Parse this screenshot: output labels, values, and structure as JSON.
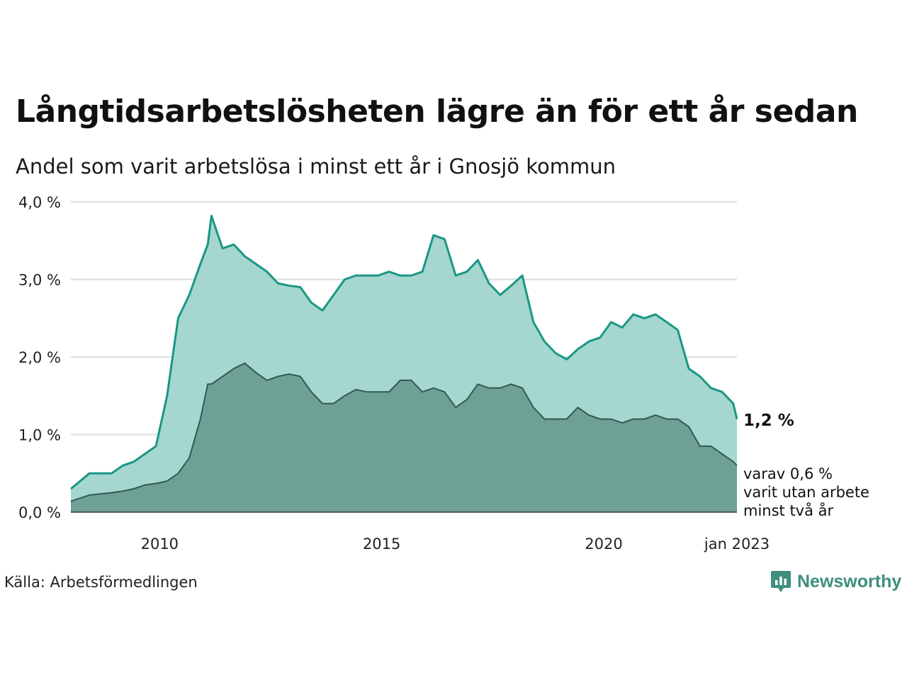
{
  "title": "Långtidsarbetslösheten lägre än för ett år sedan",
  "subtitle": "Andel som varit arbetslösa i minst ett år i Gnosjö kommun",
  "source": "Källa: Arbetsförmedlingen",
  "brand": {
    "name": "Newsworthy",
    "logo_icon": "newsworthy-logo-icon"
  },
  "colors": {
    "series1_line": "#1a9784",
    "series1_fill": "#a5d6d0",
    "series2_line": "#2e5b50",
    "series2_fill": "#6fa096",
    "grid": "#dcdcdc",
    "brand": "#3f8f7f"
  },
  "chart_data": {
    "type": "area",
    "ylim": [
      0,
      4
    ],
    "y_ticks": [
      "0,0 %",
      "1,0 %",
      "2,0 %",
      "3,0 %",
      "4,0 %"
    ],
    "x_ticks": [
      "2010",
      "2015",
      "2020",
      "jan 2023"
    ],
    "grid": true,
    "annotations": {
      "last_value": "1,2 %",
      "sub_label": [
        "varav 0,6 %",
        "varit utan arbete",
        "minst två år"
      ]
    },
    "series": [
      {
        "name": "",
        "x": [
          "2008-01",
          "2008-06",
          "2008-12",
          "2009-03",
          "2009-06",
          "2009-09",
          "2009-12",
          "2010-03",
          "2010-06",
          "2010-09",
          "2010-12",
          "2011-02",
          "2011-03",
          "2011-06",
          "2011-09",
          "2011-12",
          "2012-03",
          "2012-06",
          "2012-09",
          "2012-12",
          "2013-03",
          "2013-06",
          "2013-09",
          "2013-12",
          "2014-03",
          "2014-06",
          "2014-09",
          "2014-12",
          "2015-03",
          "2015-06",
          "2015-09",
          "2015-12",
          "2016-03",
          "2016-06",
          "2016-09",
          "2016-12",
          "2017-03",
          "2017-06",
          "2017-09",
          "2017-12",
          "2018-03",
          "2018-06",
          "2018-09",
          "2018-12",
          "2019-03",
          "2019-06",
          "2019-09",
          "2019-12",
          "2020-03",
          "2020-06",
          "2020-09",
          "2020-12",
          "2021-03",
          "2021-06",
          "2021-09",
          "2021-12",
          "2022-03",
          "2022-06",
          "2022-09",
          "2022-12",
          "2023-01"
        ],
        "values": [
          0.3,
          0.5,
          0.5,
          0.6,
          0.65,
          0.75,
          0.85,
          1.5,
          2.5,
          2.8,
          3.2,
          3.45,
          3.82,
          3.4,
          3.45,
          3.3,
          3.2,
          3.1,
          2.95,
          2.92,
          2.9,
          2.7,
          2.6,
          2.8,
          3.0,
          3.05,
          3.05,
          3.05,
          3.1,
          3.05,
          3.05,
          3.1,
          3.57,
          3.52,
          3.05,
          3.1,
          3.25,
          2.95,
          2.8,
          2.92,
          3.05,
          2.45,
          2.2,
          2.05,
          1.97,
          2.1,
          2.2,
          2.25,
          2.45,
          2.38,
          2.55,
          2.5,
          2.55,
          2.45,
          2.35,
          1.85,
          1.75,
          1.6,
          1.55,
          1.4,
          1.2
        ]
      },
      {
        "name": "",
        "x": [
          "2008-01",
          "2008-06",
          "2008-12",
          "2009-03",
          "2009-06",
          "2009-09",
          "2009-12",
          "2010-03",
          "2010-06",
          "2010-09",
          "2010-12",
          "2011-02",
          "2011-03",
          "2011-06",
          "2011-09",
          "2011-12",
          "2012-03",
          "2012-06",
          "2012-09",
          "2012-12",
          "2013-03",
          "2013-06",
          "2013-09",
          "2013-12",
          "2014-03",
          "2014-06",
          "2014-09",
          "2014-12",
          "2015-03",
          "2015-06",
          "2015-09",
          "2015-12",
          "2016-03",
          "2016-06",
          "2016-09",
          "2016-12",
          "2017-03",
          "2017-06",
          "2017-09",
          "2017-12",
          "2018-03",
          "2018-06",
          "2018-09",
          "2018-12",
          "2019-03",
          "2019-06",
          "2019-09",
          "2019-12",
          "2020-03",
          "2020-06",
          "2020-09",
          "2020-12",
          "2021-03",
          "2021-06",
          "2021-09",
          "2021-12",
          "2022-03",
          "2022-06",
          "2022-09",
          "2022-12",
          "2023-01"
        ],
        "values": [
          0.14,
          0.22,
          0.25,
          0.27,
          0.3,
          0.35,
          0.37,
          0.4,
          0.5,
          0.7,
          1.2,
          1.65,
          1.65,
          1.75,
          1.85,
          1.92,
          1.8,
          1.7,
          1.75,
          1.78,
          1.75,
          1.55,
          1.4,
          1.4,
          1.5,
          1.58,
          1.55,
          1.55,
          1.55,
          1.7,
          1.7,
          1.55,
          1.6,
          1.55,
          1.35,
          1.45,
          1.65,
          1.6,
          1.6,
          1.65,
          1.6,
          1.35,
          1.2,
          1.2,
          1.2,
          1.35,
          1.25,
          1.2,
          1.2,
          1.15,
          1.2,
          1.2,
          1.25,
          1.2,
          1.2,
          1.1,
          0.85,
          0.85,
          0.75,
          0.65,
          0.6
        ]
      }
    ]
  }
}
